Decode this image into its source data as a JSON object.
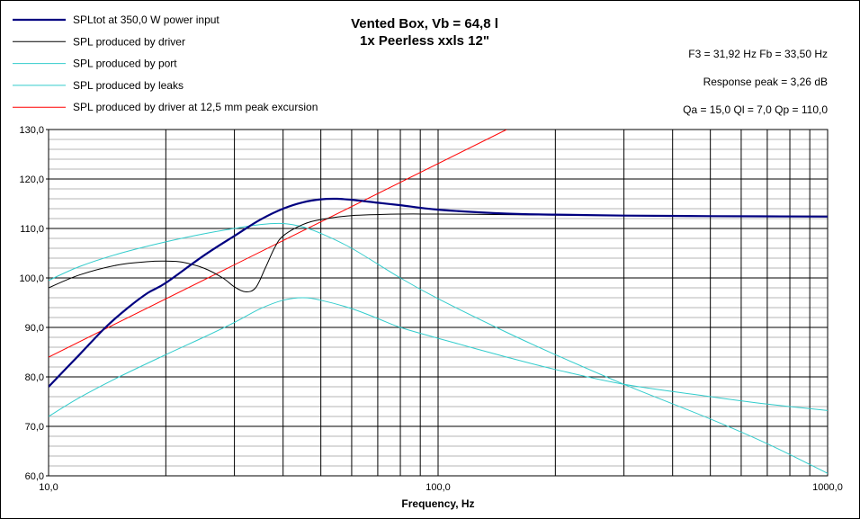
{
  "chart_data": {
    "type": "line",
    "title": "Vented Box, Vb = 64,8 l",
    "subtitle": "1x Peerless xxls 12\"",
    "xlabel": "Frequency, Hz",
    "ylabel": "",
    "x_scale": "log",
    "xlim": [
      10,
      1000
    ],
    "ylim": [
      60,
      130
    ],
    "x_tick_labels": [
      {
        "value": 10,
        "label": "10,0"
      },
      {
        "value": 100,
        "label": "100,0"
      },
      {
        "value": 1000,
        "label": "1000,0"
      }
    ],
    "y_tick_labels": [
      "60,0",
      "70,0",
      "80,0",
      "90,0",
      "100,0",
      "110,0",
      "120,0",
      "130,0"
    ],
    "grid": true,
    "legend_position": "top-left",
    "annotations": [
      "F3 = 31,92 Hz  Fb = 33,50 Hz",
      "Response  peak = 3,26 dB",
      "Qa = 15,0  Ql = 7,0  Qp = 110,0"
    ],
    "series": [
      {
        "name": "SPLtot at 350,0 W power input",
        "color": "#000080",
        "width": 2.2,
        "points": [
          [
            10,
            78
          ],
          [
            12,
            84.5
          ],
          [
            14,
            90
          ],
          [
            16,
            94
          ],
          [
            18,
            97
          ],
          [
            20,
            99
          ],
          [
            25,
            104.5
          ],
          [
            30,
            108.5
          ],
          [
            35,
            111.8
          ],
          [
            40,
            114
          ],
          [
            45,
            115.3
          ],
          [
            50,
            115.9
          ],
          [
            55,
            116
          ],
          [
            60,
            115.8
          ],
          [
            70,
            115.2
          ],
          [
            80,
            114.7
          ],
          [
            100,
            113.8
          ],
          [
            150,
            113
          ],
          [
            200,
            112.8
          ],
          [
            300,
            112.6
          ],
          [
            500,
            112.5
          ],
          [
            1000,
            112.4
          ]
        ]
      },
      {
        "name": "SPL produced by driver",
        "color": "#000000",
        "width": 1,
        "points": [
          [
            10,
            98
          ],
          [
            12,
            100.6
          ],
          [
            15,
            102.6
          ],
          [
            18,
            103.3
          ],
          [
            20,
            103.4
          ],
          [
            22,
            103.2
          ],
          [
            25,
            102
          ],
          [
            28,
            100
          ],
          [
            30,
            98.2
          ],
          [
            32,
            97.2
          ],
          [
            34,
            98
          ],
          [
            36,
            102
          ],
          [
            38,
            106
          ],
          [
            40,
            108.5
          ],
          [
            45,
            110.8
          ],
          [
            50,
            111.8
          ],
          [
            60,
            112.6
          ],
          [
            80,
            112.9
          ],
          [
            100,
            112.9
          ],
          [
            150,
            112.8
          ],
          [
            200,
            112.7
          ],
          [
            300,
            112.6
          ],
          [
            500,
            112.5
          ],
          [
            1000,
            112.5
          ]
        ]
      },
      {
        "name": "SPL produced by port",
        "color": "#33CCCC",
        "width": 1,
        "points": [
          [
            10,
            99.5
          ],
          [
            12,
            102.3
          ],
          [
            15,
            104.8
          ],
          [
            20,
            107.3
          ],
          [
            25,
            108.9
          ],
          [
            30,
            110
          ],
          [
            35,
            110.8
          ],
          [
            40,
            111
          ],
          [
            45,
            110.3
          ],
          [
            50,
            109
          ],
          [
            60,
            106
          ],
          [
            80,
            100
          ],
          [
            100,
            95.8
          ],
          [
            150,
            89
          ],
          [
            200,
            84.5
          ],
          [
            300,
            78.5
          ],
          [
            500,
            71.5
          ],
          [
            700,
            66.5
          ],
          [
            1000,
            60.5
          ]
        ]
      },
      {
        "name": "SPL produced by leaks",
        "color": "#33CCCC",
        "width": 1,
        "points": [
          [
            10,
            72
          ],
          [
            12,
            75.8
          ],
          [
            15,
            79.8
          ],
          [
            20,
            84.5
          ],
          [
            25,
            88
          ],
          [
            30,
            91
          ],
          [
            35,
            93.8
          ],
          [
            40,
            95.5
          ],
          [
            45,
            96
          ],
          [
            50,
            95.5
          ],
          [
            60,
            93.8
          ],
          [
            70,
            91.8
          ],
          [
            80,
            90
          ],
          [
            100,
            87.8
          ],
          [
            150,
            84
          ],
          [
            200,
            81.5
          ],
          [
            300,
            78.5
          ],
          [
            500,
            76
          ],
          [
            700,
            74.5
          ],
          [
            1000,
            73.2
          ]
        ]
      },
      {
        "name": "SPL produced by driver at 12,5 mm peak excursion",
        "color": "#FF0000",
        "width": 1,
        "points": [
          [
            10,
            84
          ],
          [
            150,
            130
          ]
        ]
      }
    ]
  }
}
